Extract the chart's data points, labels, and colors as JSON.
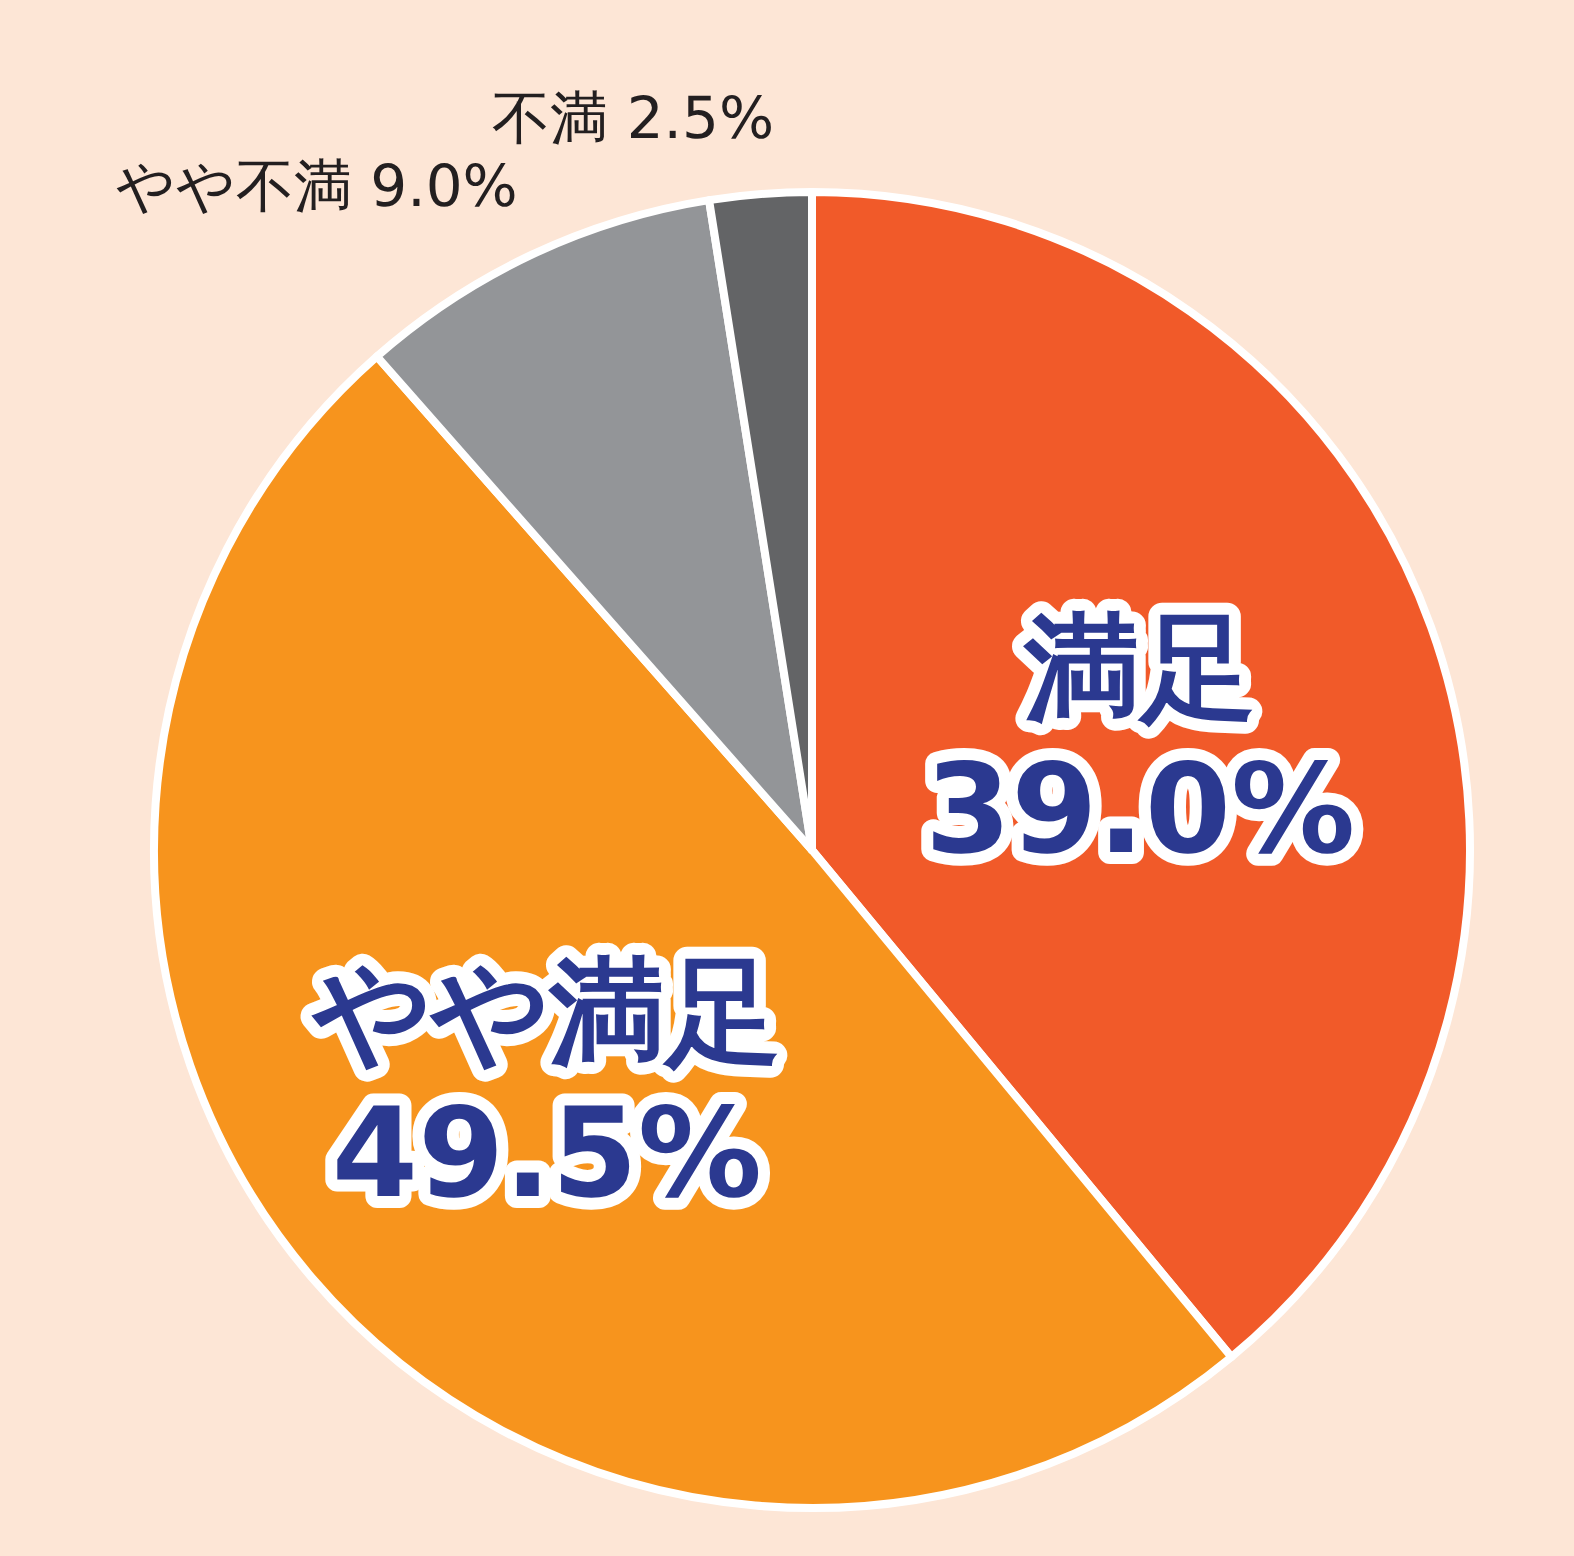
{
  "chart_data": {
    "type": "pie",
    "categories": [
      "満足",
      "やや満足",
      "やや不満",
      "不満"
    ],
    "values": [
      39.0,
      49.5,
      9.0,
      2.5
    ],
    "colors": [
      "#f15a29",
      "#f7941d",
      "#939598",
      "#636466"
    ],
    "value_labels": [
      "39.0%",
      "49.5%",
      "9.0%",
      "2.5%"
    ]
  }
}
